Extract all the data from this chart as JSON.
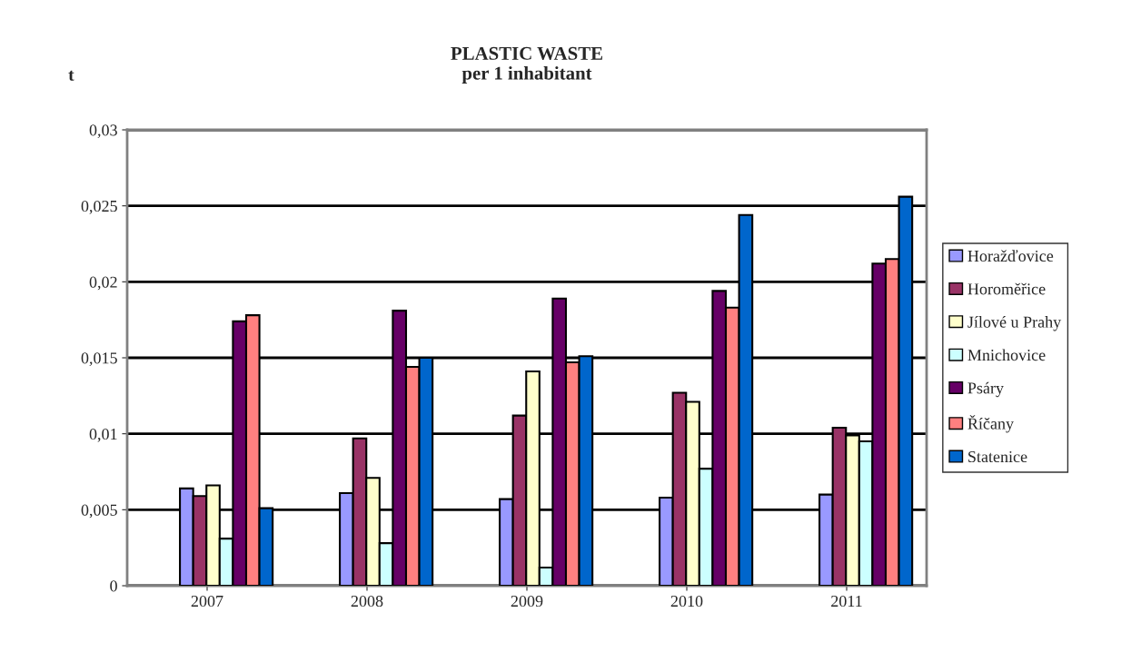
{
  "chart_data": {
    "type": "bar",
    "title": "PLASTIC WASTE\nper 1 inhabitant",
    "ylabel": "t",
    "categories": [
      "2007",
      "2008",
      "2009",
      "2010",
      "2011"
    ],
    "series": [
      {
        "name": "Horažďovice",
        "color": "#9999ff",
        "values": [
          0.0064,
          0.0061,
          0.0057,
          0.0058,
          0.006
        ]
      },
      {
        "name": "Horoměřice",
        "color": "#993366",
        "values": [
          0.0059,
          0.0097,
          0.0112,
          0.0127,
          0.0104
        ]
      },
      {
        "name": "Jílové u Prahy",
        "color": "#ffffcc",
        "values": [
          0.0066,
          0.0071,
          0.0141,
          0.0121,
          0.0099
        ]
      },
      {
        "name": "Mnichovice",
        "color": "#ccffff",
        "values": [
          0.0031,
          0.0028,
          0.0012,
          0.0077,
          0.0095
        ]
      },
      {
        "name": "Psáry",
        "color": "#660066",
        "values": [
          0.0174,
          0.0181,
          0.0189,
          0.0194,
          0.0212
        ]
      },
      {
        "name": "Říčany",
        "color": "#ff8080",
        "values": [
          0.0178,
          0.0144,
          0.0147,
          0.0183,
          0.0215
        ]
      },
      {
        "name": "Statenice",
        "color": "#0066cc",
        "values": [
          0.0051,
          0.015,
          0.0151,
          0.0244,
          0.0256
        ]
      }
    ],
    "ylim": [
      0,
      0.03
    ],
    "yticks": [
      0,
      {
        "value": 0.005,
        "label": "0,005"
      },
      {
        "value": 0.01,
        "label": "0,01"
      },
      {
        "value": 0.015,
        "label": "0,015"
      },
      {
        "value": 0.02,
        "label": "0,02"
      },
      {
        "value": 0.025,
        "label": "0,025"
      },
      {
        "value": 0.03,
        "label": "0,03"
      }
    ],
    "grid": "y",
    "legend": "right"
  }
}
